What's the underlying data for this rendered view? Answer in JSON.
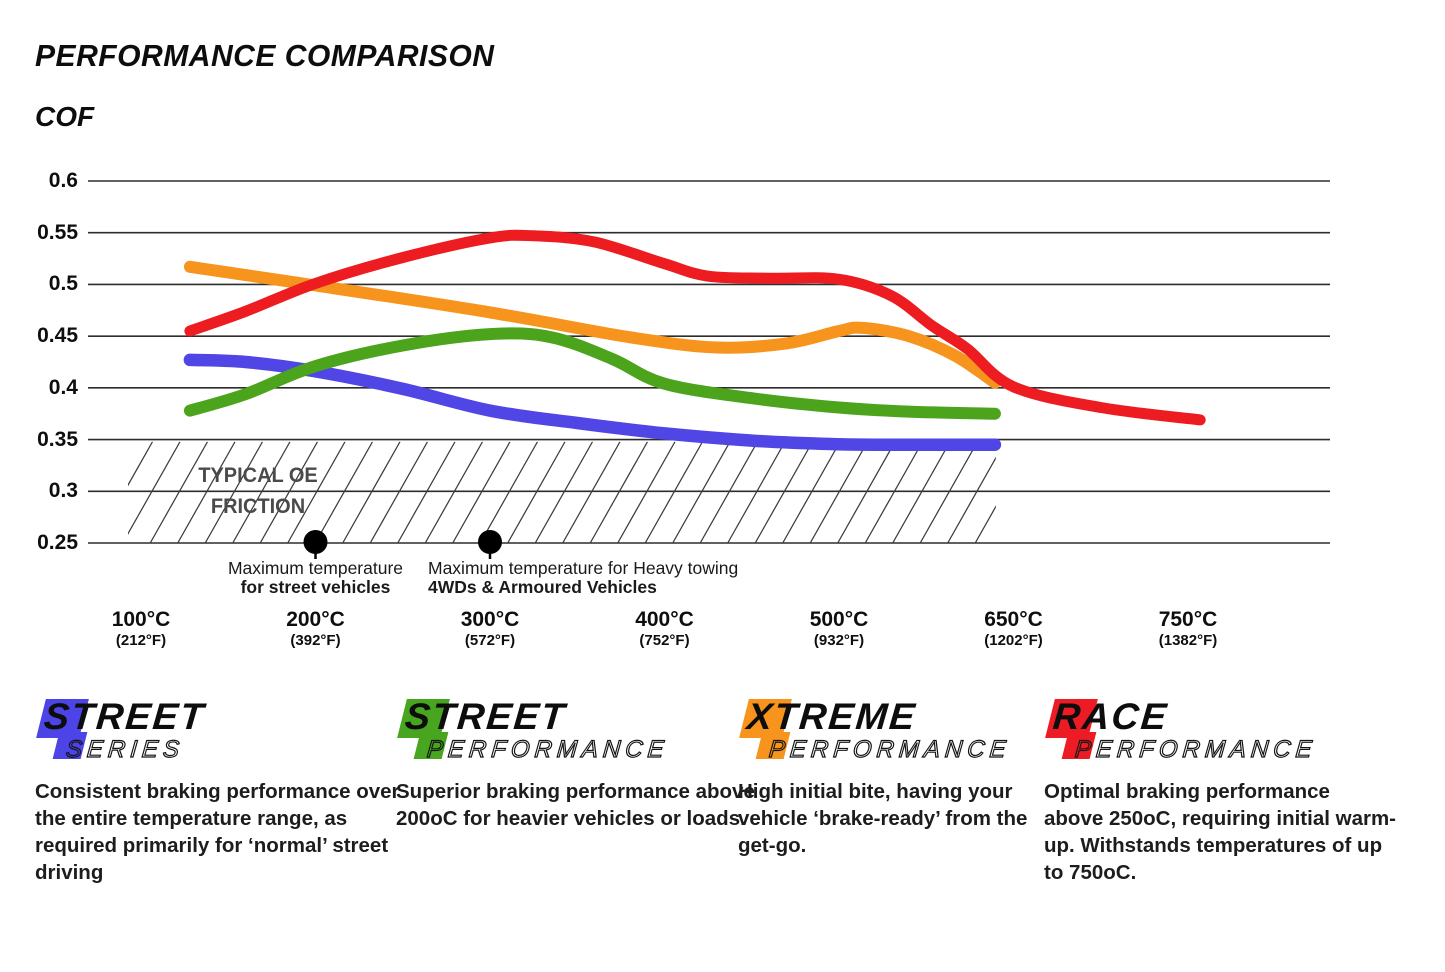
{
  "page": {
    "title": "PERFORMANCE COMPARISON",
    "y_axis_title": "COF"
  },
  "chart_data": {
    "type": "line",
    "title": "PERFORMANCE COMPARISON",
    "ylabel": "COF",
    "ylim": [
      0.25,
      0.6
    ],
    "grid": "horizontal-on",
    "yticks": [
      0.6,
      0.55,
      0.5,
      0.45,
      0.4,
      0.35,
      0.3,
      0.25
    ],
    "ytick_labels": [
      "0.6",
      "0.55",
      "0.5",
      "0.45",
      "0.4",
      "0.35",
      "0.3",
      "0.25"
    ],
    "xticks": [
      {
        "temp": 100,
        "c": "100°C",
        "f": "(212°F)"
      },
      {
        "temp": 200,
        "c": "200°C",
        "f": "(392°F)"
      },
      {
        "temp": 300,
        "c": "300°C",
        "f": "(572°F)"
      },
      {
        "temp": 400,
        "c": "400°C",
        "f": "(752°F)"
      },
      {
        "temp": 500,
        "c": "500°C",
        "f": "(932°F)"
      },
      {
        "temp": 650,
        "c": "650°C",
        "f": "(1202°F)"
      },
      {
        "temp": 750,
        "c": "750°C",
        "f": "(1382°F)"
      }
    ],
    "oe_zone": {
      "label_lines": [
        "TYPICAL OE",
        "FRICTION"
      ],
      "upper_cof": 0.345,
      "lower_cof": 0.25,
      "from_temp": 93,
      "to_temp": 640
    },
    "annotations": [
      {
        "temp": 200,
        "align": "center",
        "lines": [
          "Maximum temperature",
          "for street vehicles"
        ]
      },
      {
        "temp": 300,
        "align": "left",
        "lines": [
          "Maximum temperature for Heavy towing",
          "4WDs & Armoured Vehicles"
        ]
      }
    ],
    "series": [
      {
        "name": "Street Series",
        "color": "#4F46E5",
        "width": 12.5,
        "points": [
          [
            128,
            0.427
          ],
          [
            160,
            0.425
          ],
          [
            200,
            0.416
          ],
          [
            250,
            0.399
          ],
          [
            300,
            0.378
          ],
          [
            350,
            0.366
          ],
          [
            400,
            0.356
          ],
          [
            450,
            0.349
          ],
          [
            490,
            0.346
          ],
          [
            530,
            0.345
          ],
          [
            634,
            0.345
          ]
        ]
      },
      {
        "name": "Street Performance",
        "color": "#4CA41D",
        "width": 12,
        "points": [
          [
            128,
            0.378
          ],
          [
            160,
            0.394
          ],
          [
            200,
            0.421
          ],
          [
            250,
            0.441
          ],
          [
            300,
            0.452
          ],
          [
            335,
            0.449
          ],
          [
            370,
            0.428
          ],
          [
            400,
            0.404
          ],
          [
            450,
            0.39
          ],
          [
            500,
            0.381
          ],
          [
            560,
            0.377
          ],
          [
            634,
            0.375
          ]
        ]
      },
      {
        "name": "Xtreme Performance",
        "color": "#F7941D",
        "width": 12,
        "points": [
          [
            128,
            0.517
          ],
          [
            200,
            0.499
          ],
          [
            300,
            0.473
          ],
          [
            380,
            0.449
          ],
          [
            430,
            0.439
          ],
          [
            470,
            0.443
          ],
          [
            500,
            0.455
          ],
          [
            520,
            0.458
          ],
          [
            560,
            0.45
          ],
          [
            600,
            0.431
          ],
          [
            634,
            0.405
          ]
        ]
      },
      {
        "name": "Race Performance",
        "color": "#EC1C21",
        "width": 11,
        "points": [
          [
            128,
            0.455
          ],
          [
            160,
            0.474
          ],
          [
            200,
            0.501
          ],
          [
            250,
            0.526
          ],
          [
            300,
            0.545
          ],
          [
            325,
            0.547
          ],
          [
            360,
            0.541
          ],
          [
            400,
            0.52
          ],
          [
            425,
            0.508
          ],
          [
            460,
            0.506
          ],
          [
            500,
            0.505
          ],
          [
            545,
            0.489
          ],
          [
            580,
            0.46
          ],
          [
            610,
            0.438
          ],
          [
            650,
            0.401
          ],
          [
            700,
            0.381
          ],
          [
            757,
            0.369
          ]
        ]
      }
    ]
  },
  "legend": [
    {
      "word1": "STREET",
      "word2": "SERIES",
      "color": "#4D44E8",
      "desc_lines": [
        "Consistent braking performance over",
        "the entire temperature range, as",
        "required primarily for ‘normal’ street",
        "driving"
      ]
    },
    {
      "word1": "STREET",
      "word2": "PERFORMANCE",
      "color": "#47A520",
      "desc_lines": [
        "Superior braking performance above",
        "200oC for heavier vehicles or loads."
      ]
    },
    {
      "word1": "XTREME",
      "word2": "PERFORMANCE",
      "color": "#F7941D",
      "desc_lines": [
        "High initial bite, having your",
        "vehicle ‘brake-ready’ from the",
        "get-go."
      ]
    },
    {
      "word1": "RACE",
      "word2": "PERFORMANCE",
      "color": "#ED1C24",
      "desc_lines": [
        "Optimal braking performance",
        "above 250oC, requiring initial warm-",
        "up. Withstands temperatures of up",
        "to 750oC."
      ]
    }
  ]
}
